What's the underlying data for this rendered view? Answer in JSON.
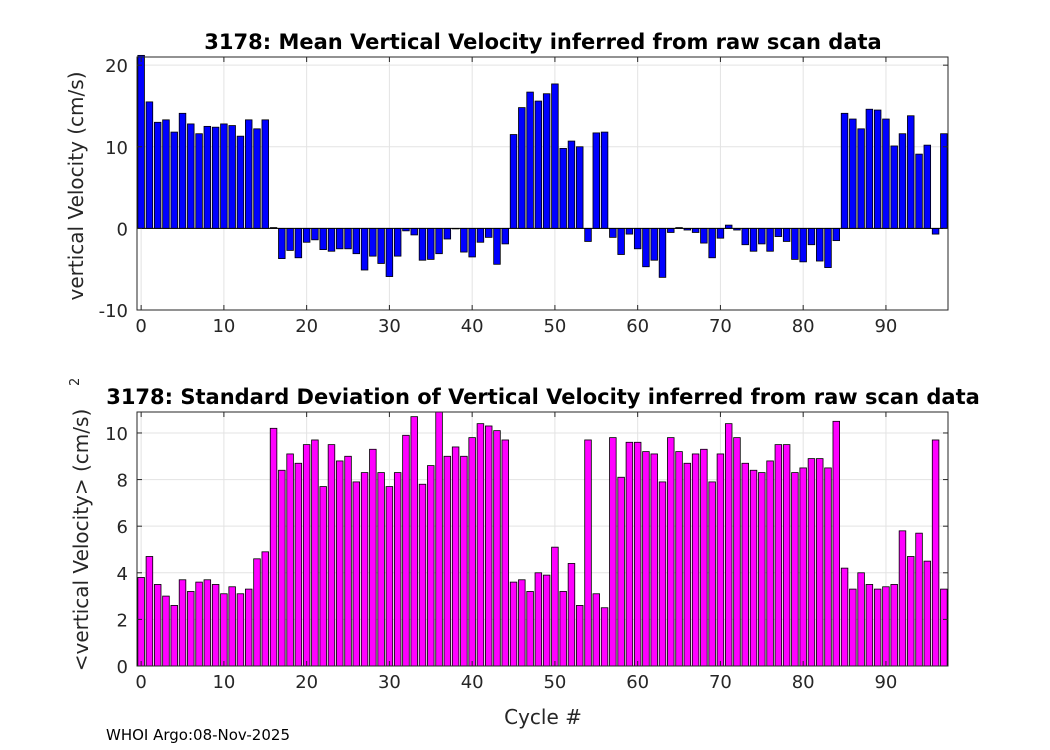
{
  "footer": "WHOI Argo:08-Nov-2025",
  "chart_data": [
    {
      "type": "bar",
      "title": "3178: Mean Vertical Velocity inferred from raw scan data",
      "xlabel": "",
      "ylabel": "vertical Velocity (cm/s)",
      "xlim": [
        -0.5,
        97.5
      ],
      "ylim": [
        -10,
        21
      ],
      "xticks": [
        0,
        10,
        20,
        30,
        40,
        50,
        60,
        70,
        80,
        90
      ],
      "yticks": [
        -10,
        0,
        10,
        20
      ],
      "grid": true,
      "color": "#0000ff",
      "x": [
        0,
        1,
        2,
        3,
        4,
        5,
        6,
        7,
        8,
        9,
        10,
        11,
        12,
        13,
        14,
        15,
        16,
        17,
        18,
        19,
        20,
        21,
        22,
        23,
        24,
        25,
        26,
        27,
        28,
        29,
        30,
        31,
        32,
        33,
        34,
        35,
        36,
        37,
        38,
        39,
        40,
        41,
        42,
        43,
        44,
        45,
        46,
        47,
        48,
        49,
        50,
        51,
        52,
        53,
        54,
        55,
        56,
        57,
        58,
        59,
        60,
        61,
        62,
        63,
        64,
        65,
        66,
        67,
        68,
        69,
        70,
        71,
        72,
        73,
        74,
        75,
        76,
        77,
        78,
        79,
        80,
        81,
        82,
        83,
        84,
        85,
        86,
        87,
        88,
        89,
        90,
        91,
        92,
        93,
        94,
        95,
        96,
        97
      ],
      "values": [
        21.2,
        15.5,
        13.0,
        13.3,
        11.8,
        14.1,
        12.8,
        11.6,
        12.5,
        12.4,
        12.8,
        12.6,
        11.3,
        13.3,
        12.2,
        13.3,
        0.1,
        -3.7,
        -2.7,
        -3.6,
        -1.7,
        -1.4,
        -2.6,
        -2.8,
        -2.5,
        -2.5,
        -3.1,
        -5.1,
        -3.4,
        -4.3,
        -5.9,
        -3.4,
        -0.3,
        -0.8,
        -3.9,
        -3.8,
        -3.1,
        -1.3,
        0.0,
        -2.9,
        -3.5,
        -1.7,
        -1.1,
        -4.4,
        -1.9,
        11.5,
        14.8,
        16.7,
        15.6,
        16.5,
        17.7,
        9.8,
        10.7,
        10.0,
        -1.6,
        11.7,
        11.8,
        -1.1,
        -3.2,
        -0.7,
        -2.5,
        -4.7,
        -3.9,
        -6.0,
        -0.5,
        0.1,
        -0.2,
        -0.5,
        -1.8,
        -3.6,
        -1.2,
        0.4,
        -0.2,
        -2.0,
        -2.8,
        -1.9,
        -2.8,
        -1.0,
        -1.6,
        -3.8,
        -4.1,
        -2.0,
        -4.0,
        -4.8,
        -1.5,
        14.1,
        13.4,
        12.2,
        14.6,
        14.5,
        13.4,
        10.1,
        11.6,
        13.8,
        9.1,
        10.2,
        -0.7,
        11.6
      ]
    },
    {
      "type": "bar",
      "title": "3178: Standard Deviation of Vertical Velocity inferred from raw scan data",
      "xlabel": "Cycle #",
      "ylabel": "<vertical Velocity> (cm/s)",
      "ylabel_superscript": "2",
      "xlim": [
        -0.5,
        97.5
      ],
      "ylim": [
        0,
        10.9
      ],
      "xticks": [
        0,
        10,
        20,
        30,
        40,
        50,
        60,
        70,
        80,
        90
      ],
      "yticks": [
        0,
        2,
        4,
        6,
        8,
        10
      ],
      "grid": true,
      "color": "#ff00ff",
      "x": [
        0,
        1,
        2,
        3,
        4,
        5,
        6,
        7,
        8,
        9,
        10,
        11,
        12,
        13,
        14,
        15,
        16,
        17,
        18,
        19,
        20,
        21,
        22,
        23,
        24,
        25,
        26,
        27,
        28,
        29,
        30,
        31,
        32,
        33,
        34,
        35,
        36,
        37,
        38,
        39,
        40,
        41,
        42,
        43,
        44,
        45,
        46,
        47,
        48,
        49,
        50,
        51,
        52,
        53,
        54,
        55,
        56,
        57,
        58,
        59,
        60,
        61,
        62,
        63,
        64,
        65,
        66,
        67,
        68,
        69,
        70,
        71,
        72,
        73,
        74,
        75,
        76,
        77,
        78,
        79,
        80,
        81,
        82,
        83,
        84,
        85,
        86,
        87,
        88,
        89,
        90,
        91,
        92,
        93,
        94,
        95,
        96,
        97
      ],
      "values": [
        3.8,
        4.7,
        3.5,
        3.0,
        2.6,
        3.7,
        3.2,
        3.6,
        3.7,
        3.5,
        3.1,
        3.4,
        3.1,
        3.3,
        4.6,
        4.9,
        10.2,
        8.4,
        9.1,
        8.7,
        9.5,
        9.7,
        7.7,
        9.5,
        8.8,
        9.0,
        7.9,
        8.3,
        9.3,
        8.3,
        7.7,
        8.3,
        9.9,
        10.7,
        7.8,
        8.6,
        10.9,
        9.0,
        9.4,
        9.0,
        9.8,
        10.4,
        10.3,
        10.1,
        9.7,
        3.6,
        3.7,
        3.2,
        4.0,
        3.9,
        5.1,
        3.2,
        4.4,
        2.6,
        9.7,
        3.1,
        2.5,
        9.8,
        8.1,
        9.6,
        9.6,
        9.2,
        9.1,
        7.9,
        9.8,
        9.2,
        8.7,
        9.1,
        9.3,
        7.9,
        9.1,
        10.4,
        9.8,
        8.7,
        8.4,
        8.3,
        8.8,
        9.5,
        9.5,
        8.3,
        8.5,
        8.9,
        8.9,
        8.5,
        10.5,
        4.2,
        3.3,
        4.0,
        3.5,
        3.3,
        3.4,
        3.5,
        5.8,
        4.7,
        5.7,
        4.5,
        9.7,
        3.3
      ]
    }
  ]
}
